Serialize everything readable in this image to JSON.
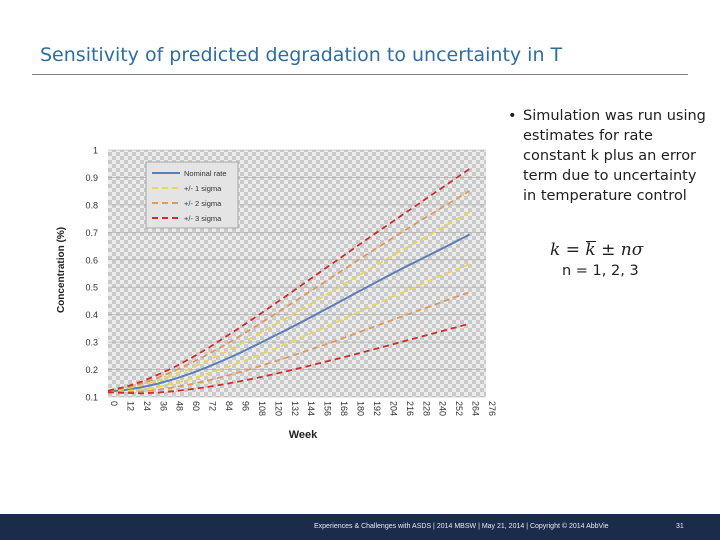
{
  "slide": {
    "title": "Sensitivity of predicted degradation to uncertainty in T",
    "bullet": "Simulation was run using estimates for rate constant k plus an error term due to uncertainty in temperature control",
    "formula": {
      "k": "k",
      "equals": " = ",
      "kbar": "k",
      "rest": " ± nσ"
    },
    "n_values": "n = 1, 2, 3",
    "footer": "Experiences & Challenges with ASDS | 2014 MBSW | May 21, 2014 | Copyright © 2014 AbbVie",
    "slide_number": "31"
  },
  "chart_data": {
    "type": "line",
    "xlabel": "Week",
    "ylabel": "Concentration (%)",
    "ylim": [
      0.1,
      1.0
    ],
    "xlim": [
      0,
      276
    ],
    "y_ticks": [
      "0.1",
      "0.2",
      "0.3",
      "0.4",
      "0.5",
      "0.6",
      "0.7",
      "0.8",
      "0.9",
      "1"
    ],
    "x_ticks": [
      "0",
      "12",
      "24",
      "36",
      "48",
      "60",
      "72",
      "84",
      "96",
      "108",
      "120",
      "132",
      "144",
      "156",
      "168",
      "180",
      "192",
      "204",
      "216",
      "228",
      "240",
      "252",
      "264",
      "276"
    ],
    "grid": true,
    "legend_position": "top-left",
    "x": [
      0,
      12,
      24,
      36,
      48,
      60,
      72,
      84,
      96,
      108,
      120,
      132,
      144,
      156,
      168,
      180,
      192,
      204,
      216,
      228,
      240,
      252,
      264
    ],
    "series": [
      {
        "name": "Nominal rate",
        "color": "#5b7fb8",
        "dash": "solid",
        "values": [
          0.12,
          0.125,
          0.135,
          0.148,
          0.165,
          0.185,
          0.208,
          0.233,
          0.26,
          0.289,
          0.319,
          0.349,
          0.38,
          0.412,
          0.444,
          0.476,
          0.508,
          0.54,
          0.571,
          0.601,
          0.631,
          0.661,
          0.692
        ]
      },
      {
        "name": "+/- 1 sigma",
        "color": "#e8d84a",
        "dash": "dashed",
        "values": [
          0.121,
          0.129,
          0.142,
          0.159,
          0.18,
          0.204,
          0.231,
          0.26,
          0.291,
          0.324,
          0.358,
          0.392,
          0.427,
          0.463,
          0.498,
          0.534,
          0.569,
          0.604,
          0.638,
          0.672,
          0.706,
          0.74,
          0.774
        ]
      },
      {
        "name": "+/- 1 sigma",
        "color": "#e8d84a",
        "dash": "dashed",
        "values": [
          0.119,
          0.121,
          0.127,
          0.136,
          0.149,
          0.165,
          0.183,
          0.203,
          0.225,
          0.248,
          0.272,
          0.297,
          0.323,
          0.349,
          0.376,
          0.403,
          0.43,
          0.457,
          0.483,
          0.509,
          0.535,
          0.56,
          0.584
        ]
      },
      {
        "name": "+/- 2 sigma",
        "color": "#e09a58",
        "dash": "dashed",
        "values": [
          0.122,
          0.132,
          0.148,
          0.169,
          0.194,
          0.222,
          0.253,
          0.286,
          0.321,
          0.358,
          0.396,
          0.434,
          0.473,
          0.512,
          0.551,
          0.59,
          0.629,
          0.667,
          0.705,
          0.742,
          0.779,
          0.815,
          0.851
        ]
      },
      {
        "name": "+/- 2 sigma",
        "color": "#e09a58",
        "dash": "dashed",
        "values": [
          0.118,
          0.118,
          0.12,
          0.126,
          0.135,
          0.146,
          0.159,
          0.174,
          0.19,
          0.208,
          0.227,
          0.246,
          0.266,
          0.287,
          0.308,
          0.33,
          0.352,
          0.374,
          0.396,
          0.418,
          0.439,
          0.461,
          0.482
        ]
      },
      {
        "name": "+/- 3 sigma",
        "color": "#d32b2b",
        "dash": "dashed",
        "values": [
          0.123,
          0.136,
          0.155,
          0.18,
          0.208,
          0.24,
          0.275,
          0.313,
          0.352,
          0.392,
          0.433,
          0.475,
          0.517,
          0.559,
          0.601,
          0.643,
          0.685,
          0.726,
          0.767,
          0.808,
          0.849,
          0.89,
          0.931
        ]
      },
      {
        "name": "+/- 3 sigma",
        "color": "#d32b2b",
        "dash": "dashed",
        "values": [
          0.117,
          0.115,
          0.113,
          0.116,
          0.121,
          0.128,
          0.136,
          0.146,
          0.157,
          0.169,
          0.182,
          0.196,
          0.21,
          0.225,
          0.24,
          0.255,
          0.271,
          0.287,
          0.303,
          0.319,
          0.335,
          0.351,
          0.367
        ]
      }
    ],
    "legend": [
      {
        "label": "Nominal rate",
        "color": "#5b7fb8",
        "dash": "solid"
      },
      {
        "label": "+/- 1 sigma",
        "color": "#e8d84a",
        "dash": "dashed"
      },
      {
        "label": "+/- 2 sigma",
        "color": "#e09a58",
        "dash": "dashed"
      },
      {
        "label": "+/- 3 sigma",
        "color": "#d32b2b",
        "dash": "dashed"
      }
    ]
  }
}
